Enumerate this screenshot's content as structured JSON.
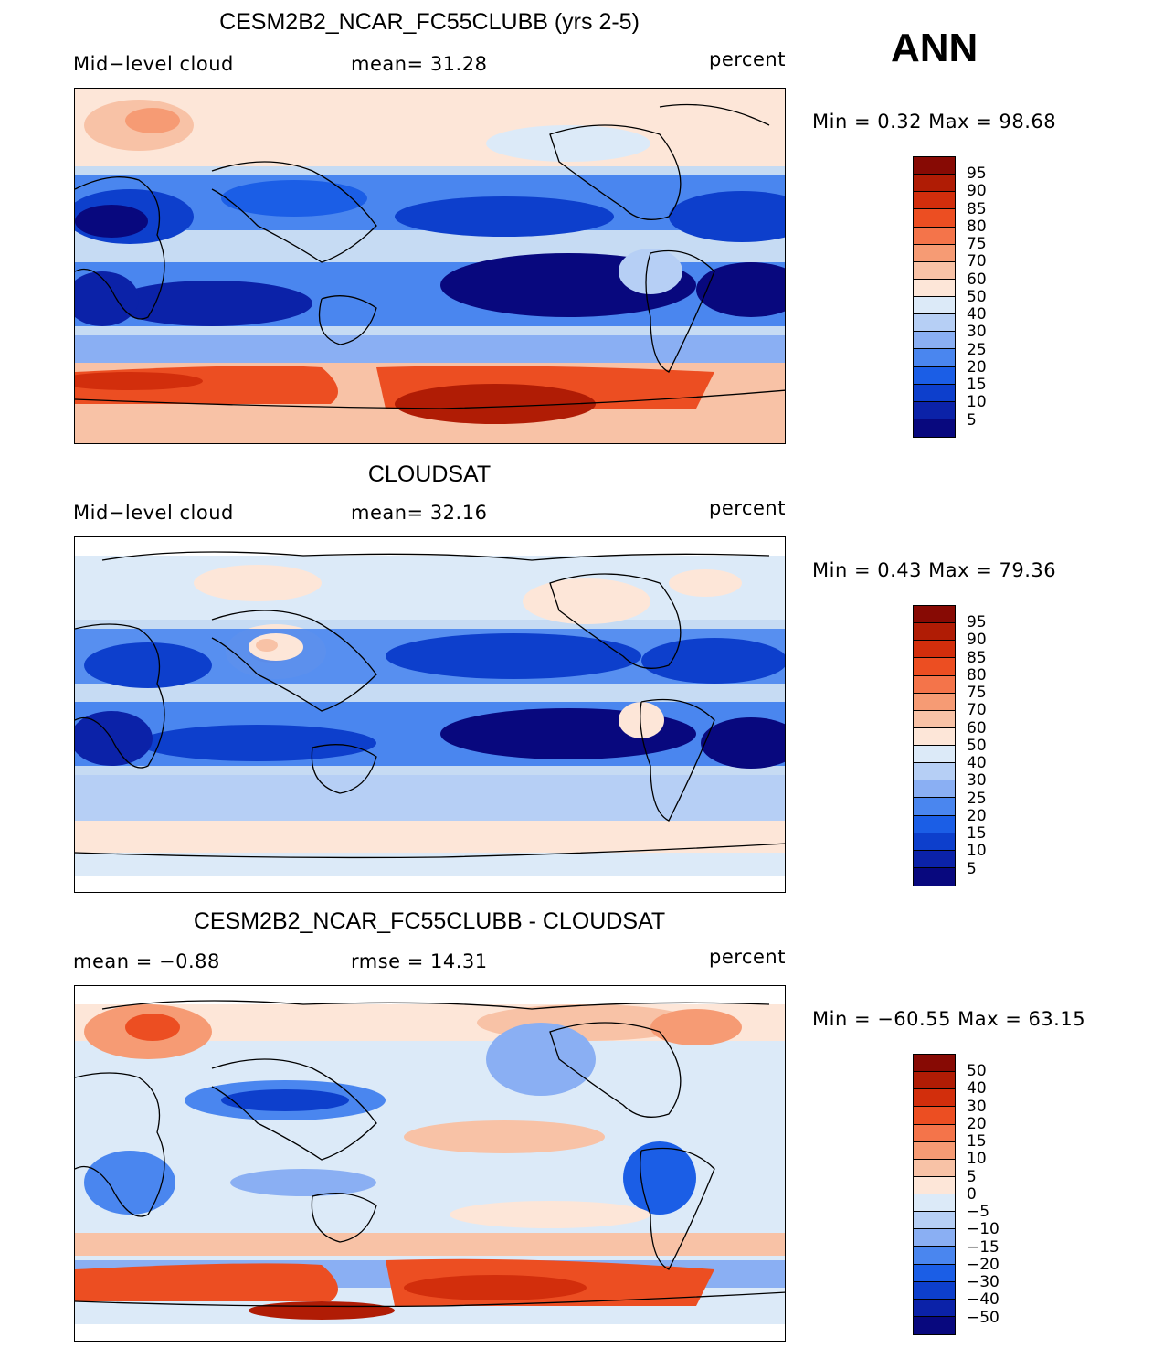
{
  "season": "ANN",
  "palette": {
    "model_obs": [
      "#08087e",
      "#0b22a8",
      "#0d3fcc",
      "#1b5ee6",
      "#4a86ef",
      "#8aaff3",
      "#b6cff5",
      "#dceaf8",
      "#fde6d8",
      "#f8c2a6",
      "#f69b74",
      "#f4744a",
      "#ec4e22",
      "#d22e0c",
      "#b01c05",
      "#870a04"
    ],
    "diff": [
      "#08087e",
      "#0b22a8",
      "#0d3fcc",
      "#1b5ee6",
      "#4a86ef",
      "#8aaff3",
      "#b6cff5",
      "#dceaf8",
      "#fde6d8",
      "#f8c2a6",
      "#f69b74",
      "#f4744a",
      "#ec4e22",
      "#d22e0c",
      "#b01c05",
      "#870a04"
    ]
  },
  "panels": [
    {
      "title": "CESM2B2_NCAR_FC55CLUBB (yrs 2-5)",
      "left_label": "Mid−level cloud",
      "center_label": "mean=   31.28",
      "right_label": "percent",
      "minmax": "Min =    0.32  Max =   98.68",
      "ticks": [
        "95",
        "90",
        "85",
        "80",
        "75",
        "70",
        "60",
        "50",
        "40",
        "30",
        "25",
        "20",
        "15",
        "10",
        "5"
      ]
    },
    {
      "title": "CLOUDSAT",
      "left_label": "Mid−level cloud",
      "center_label": "mean=   32.16",
      "right_label": "percent",
      "minmax": "Min =    0.43  Max =   79.36",
      "ticks": [
        "95",
        "90",
        "85",
        "80",
        "75",
        "70",
        "60",
        "50",
        "40",
        "30",
        "25",
        "20",
        "15",
        "10",
        "5"
      ]
    },
    {
      "title": "CESM2B2_NCAR_FC55CLUBB - CLOUDSAT",
      "left_label": "mean =   −0.88",
      "center_label": "rmse =    14.31",
      "right_label": "percent",
      "minmax": "Min = −60.55  Max =   63.15",
      "ticks": [
        "50",
        "40",
        "30",
        "20",
        "15",
        "10",
        "5",
        "0",
        "−5",
        "−10",
        "−15",
        "−20",
        "−30",
        "−40",
        "−50"
      ]
    }
  ]
}
